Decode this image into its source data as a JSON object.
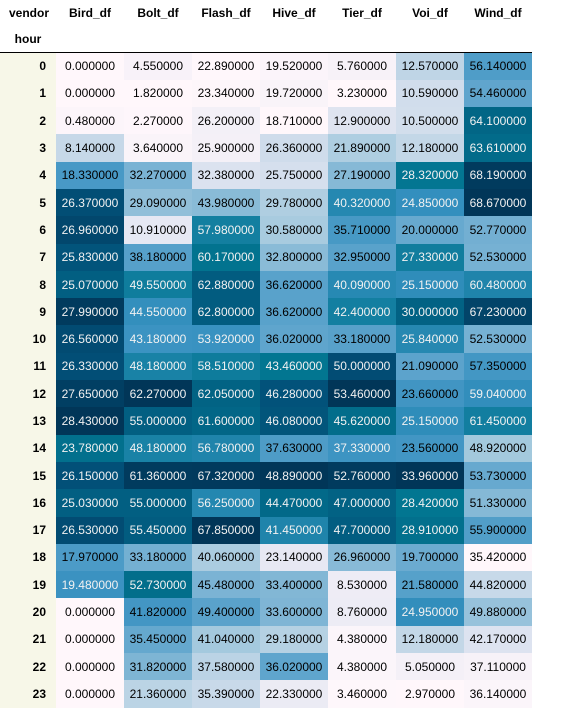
{
  "table": {
    "columns_label": "vendor",
    "index_label": "hour",
    "columns": [
      "Bird_df",
      "Bolt_df",
      "Flash_df",
      "Hive_df",
      "Tier_df",
      "Voi_df",
      "Wind_df"
    ],
    "colormap_note": "",
    "colors": {
      "light": "#fff7fb",
      "mid": "#67a9cf",
      "dark": "#023858"
    },
    "rows": [
      {
        "hour": "0",
        "values": [
          "0.000000",
          "4.550000",
          "22.890000",
          "19.520000",
          "5.760000",
          "12.570000",
          "56.140000"
        ]
      },
      {
        "hour": "1",
        "values": [
          "0.000000",
          "1.820000",
          "23.340000",
          "19.720000",
          "3.230000",
          "10.590000",
          "54.460000"
        ]
      },
      {
        "hour": "2",
        "values": [
          "0.480000",
          "2.270000",
          "26.200000",
          "18.710000",
          "12.900000",
          "10.500000",
          "64.100000"
        ]
      },
      {
        "hour": "3",
        "values": [
          "8.140000",
          "3.640000",
          "25.900000",
          "26.360000",
          "21.890000",
          "12.180000",
          "63.610000"
        ]
      },
      {
        "hour": "4",
        "values": [
          "18.330000",
          "32.270000",
          "32.380000",
          "25.750000",
          "27.190000",
          "28.320000",
          "68.190000"
        ]
      },
      {
        "hour": "5",
        "values": [
          "26.370000",
          "29.090000",
          "43.980000",
          "29.780000",
          "40.320000",
          "24.850000",
          "68.670000"
        ]
      },
      {
        "hour": "6",
        "values": [
          "26.960000",
          "10.910000",
          "57.980000",
          "30.580000",
          "35.710000",
          "20.000000",
          "52.770000"
        ]
      },
      {
        "hour": "7",
        "values": [
          "25.830000",
          "38.180000",
          "60.170000",
          "32.800000",
          "32.950000",
          "27.330000",
          "52.530000"
        ]
      },
      {
        "hour": "8",
        "values": [
          "25.070000",
          "49.550000",
          "62.880000",
          "36.620000",
          "40.090000",
          "25.150000",
          "60.480000"
        ]
      },
      {
        "hour": "9",
        "values": [
          "27.990000",
          "44.550000",
          "62.800000",
          "36.620000",
          "42.400000",
          "30.000000",
          "67.230000"
        ]
      },
      {
        "hour": "10",
        "values": [
          "26.560000",
          "43.180000",
          "53.920000",
          "36.020000",
          "33.180000",
          "25.840000",
          "52.530000"
        ]
      },
      {
        "hour": "11",
        "values": [
          "26.330000",
          "48.180000",
          "58.510000",
          "43.460000",
          "50.000000",
          "21.090000",
          "57.350000"
        ]
      },
      {
        "hour": "12",
        "values": [
          "27.650000",
          "62.270000",
          "62.050000",
          "46.280000",
          "53.460000",
          "23.660000",
          "59.040000"
        ]
      },
      {
        "hour": "13",
        "values": [
          "28.430000",
          "55.000000",
          "61.600000",
          "46.080000",
          "45.620000",
          "25.150000",
          "61.450000"
        ]
      },
      {
        "hour": "14",
        "values": [
          "23.780000",
          "48.180000",
          "56.780000",
          "37.630000",
          "37.330000",
          "23.560000",
          "48.920000"
        ]
      },
      {
        "hour": "15",
        "values": [
          "26.150000",
          "61.360000",
          "67.320000",
          "48.890000",
          "52.760000",
          "33.960000",
          "53.730000"
        ]
      },
      {
        "hour": "16",
        "values": [
          "25.030000",
          "55.000000",
          "56.250000",
          "44.470000",
          "47.000000",
          "28.420000",
          "51.330000"
        ]
      },
      {
        "hour": "17",
        "values": [
          "26.530000",
          "55.450000",
          "67.850000",
          "41.450000",
          "47.700000",
          "28.910000",
          "55.900000"
        ]
      },
      {
        "hour": "18",
        "values": [
          "17.970000",
          "33.180000",
          "40.060000",
          "23.140000",
          "26.960000",
          "19.700000",
          "35.420000"
        ]
      },
      {
        "hour": "19",
        "values": [
          "19.480000",
          "52.730000",
          "45.480000",
          "33.400000",
          "8.530000",
          "21.580000",
          "44.820000"
        ]
      },
      {
        "hour": "20",
        "values": [
          "0.000000",
          "41.820000",
          "49.400000",
          "33.600000",
          "8.760000",
          "24.950000",
          "49.880000"
        ]
      },
      {
        "hour": "21",
        "values": [
          "0.000000",
          "35.450000",
          "41.040000",
          "29.180000",
          "4.380000",
          "12.180000",
          "42.170000"
        ]
      },
      {
        "hour": "22",
        "values": [
          "0.000000",
          "31.820000",
          "37.580000",
          "36.020000",
          "4.380000",
          "5.050000",
          "37.110000"
        ]
      },
      {
        "hour": "23",
        "values": [
          "0.000000",
          "21.360000",
          "35.390000",
          "22.330000",
          "3.460000",
          "2.970000",
          "36.140000"
        ]
      }
    ]
  }
}
